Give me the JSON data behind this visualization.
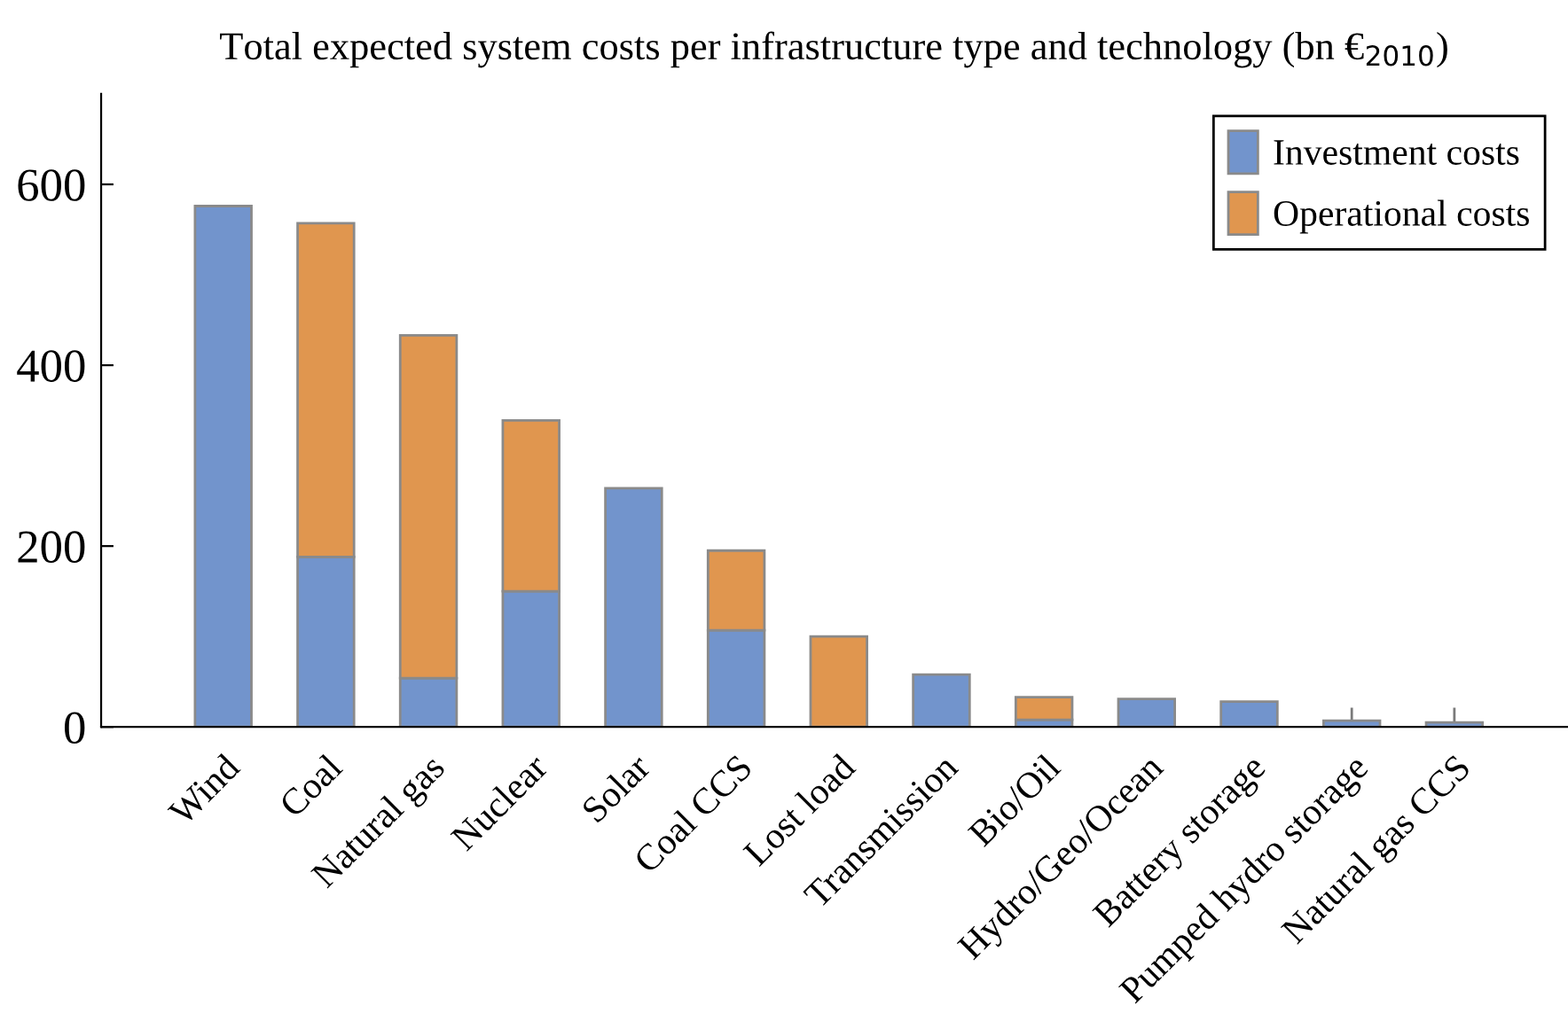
{
  "chart_data": {
    "type": "bar",
    "stacked": true,
    "title": "Total expected system costs per infrastructure type and technology (bn €$_{2010}$)",
    "categories": [
      "Wind",
      "Coal",
      "Natural gas",
      "Nuclear",
      "Solar",
      "Coal CCS",
      "Lost load",
      "Transmission",
      "Bio/Oil",
      "Hydro/Geo/Ocean",
      "Battery storage",
      "Pumped hydro storage",
      "Natural gas CCS"
    ],
    "series": [
      {
        "name": "Investment costs",
        "color": "#7294cc",
        "values": [
          576,
          188,
          54,
          150,
          264,
          107,
          null,
          58,
          8,
          31,
          28,
          7,
          5
        ],
        "errors": [
          null,
          null,
          null,
          null,
          null,
          null,
          null,
          null,
          null,
          null,
          null,
          [
            7,
            20
          ],
          [
            5,
            20
          ]
        ]
      },
      {
        "name": "Operational costs",
        "color": "#e0964f",
        "values": [
          null,
          369,
          379,
          189,
          null,
          88,
          100,
          null,
          25,
          null,
          null,
          null,
          null
        ]
      }
    ],
    "ylim": [
      0,
      700
    ],
    "yticks": [
      0,
      200,
      400,
      600
    ],
    "grid": false,
    "legend": "top right"
  }
}
